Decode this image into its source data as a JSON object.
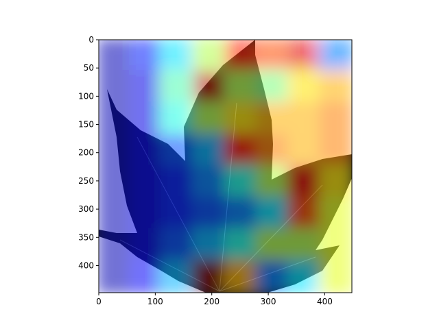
{
  "chart_data": {
    "type": "heatmap",
    "title": "",
    "xlabel": "",
    "ylabel": "",
    "xlim": [
      0,
      448
    ],
    "ylim": [
      448,
      0
    ],
    "x_ticks": [
      0,
      100,
      200,
      300,
      400
    ],
    "y_ticks": [
      0,
      50,
      100,
      150,
      200,
      250,
      300,
      350,
      400
    ],
    "grid": false,
    "legend": "none",
    "colormap": "jet",
    "overlay_alpha": 0.5,
    "background": "leaf photograph (maple-like leaf, dark) on white, with a Grad-CAM style attention heatmap overlaid",
    "rows": 8,
    "cols": 8,
    "values": [
      [
        0.05,
        0.15,
        0.35,
        0.55,
        0.85,
        0.8,
        0.9,
        0.25
      ],
      [
        0.05,
        0.1,
        0.45,
        0.95,
        0.55,
        0.5,
        0.65,
        0.7
      ],
      [
        0.05,
        0.1,
        0.4,
        0.55,
        0.65,
        0.7,
        0.7,
        0.75
      ],
      [
        0.05,
        0.1,
        0.2,
        0.3,
        0.85,
        0.75,
        0.7,
        0.75
      ],
      [
        0.05,
        0.1,
        0.15,
        0.25,
        0.4,
        0.55,
        0.9,
        0.65
      ],
      [
        0.05,
        0.1,
        0.15,
        0.2,
        0.25,
        0.35,
        0.8,
        0.6
      ],
      [
        0.05,
        0.1,
        0.2,
        0.3,
        0.4,
        0.55,
        0.55,
        0.6
      ],
      [
        0.05,
        0.12,
        0.3,
        1.0,
        0.7,
        0.25,
        0.35,
        0.6
      ]
    ]
  }
}
